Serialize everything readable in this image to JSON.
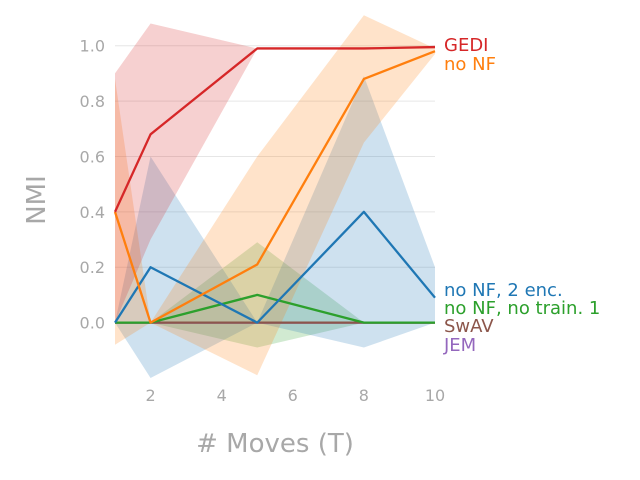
{
  "chart_data": {
    "type": "line",
    "title": "",
    "xlabel": "# Moves (T)",
    "ylabel": "NMI",
    "x": [
      1,
      2,
      5,
      8,
      10
    ],
    "xlim": [
      1,
      10
    ],
    "ylim": [
      -0.2,
      1.1
    ],
    "xticks": [
      2,
      4,
      6,
      8,
      10
    ],
    "yticks": [
      0.0,
      0.2,
      0.4,
      0.6,
      0.8,
      1.0
    ],
    "ytick_labels": [
      "0.0",
      "0.2",
      "0.4",
      "0.6",
      "0.8",
      "1.0"
    ],
    "grid": "horizontal",
    "legend": "inline labels at right end of lines",
    "series": [
      {
        "name": "GEDI",
        "color": "#d62728",
        "values": [
          0.4,
          0.68,
          0.99,
          0.99,
          0.995
        ],
        "lower": [
          0.0,
          0.3,
          0.99,
          0.99,
          0.99
        ],
        "upper": [
          0.9,
          1.08,
          0.99,
          0.99,
          1.0
        ]
      },
      {
        "name": "no NF",
        "color": "#ff7f0e",
        "values": [
          0.4,
          0.0,
          0.21,
          0.88,
          0.98
        ],
        "lower": [
          -0.08,
          0.0,
          -0.19,
          0.65,
          0.97
        ],
        "upper": [
          0.88,
          0.0,
          0.6,
          1.11,
          0.99
        ]
      },
      {
        "name": "no NF, 2 enc.",
        "color": "#1f77b4",
        "values": [
          0.0,
          0.2,
          0.0,
          0.4,
          0.09
        ],
        "lower": [
          0.0,
          -0.2,
          0.0,
          -0.09,
          0.0
        ],
        "upper": [
          0.0,
          0.6,
          0.0,
          0.89,
          0.2
        ]
      },
      {
        "name": "no NF, no train. 1",
        "color": "#2ca02c",
        "values": [
          0.0,
          0.0,
          0.1,
          0.0,
          0.0
        ],
        "lower": [
          0.0,
          0.0,
          -0.09,
          0.0,
          0.0
        ],
        "upper": [
          0.0,
          0.0,
          0.29,
          0.0,
          0.0
        ]
      },
      {
        "name": "SwAV",
        "color": "#8c564b",
        "values": [
          0.0,
          0.0,
          0.0,
          0.0,
          0.0
        ],
        "lower": [
          0.0,
          0.0,
          0.0,
          0.0,
          0.0
        ],
        "upper": [
          0.0,
          0.0,
          0.0,
          0.0,
          0.0
        ]
      },
      {
        "name": "JEM",
        "color": "#9467bd",
        "values": [
          0.0,
          0.0,
          0.0,
          0.0,
          0.0
        ],
        "lower": [
          0.0,
          0.0,
          0.0,
          0.0,
          0.0
        ],
        "upper": [
          0.0,
          0.0,
          0.0,
          0.0,
          0.0
        ]
      }
    ]
  }
}
